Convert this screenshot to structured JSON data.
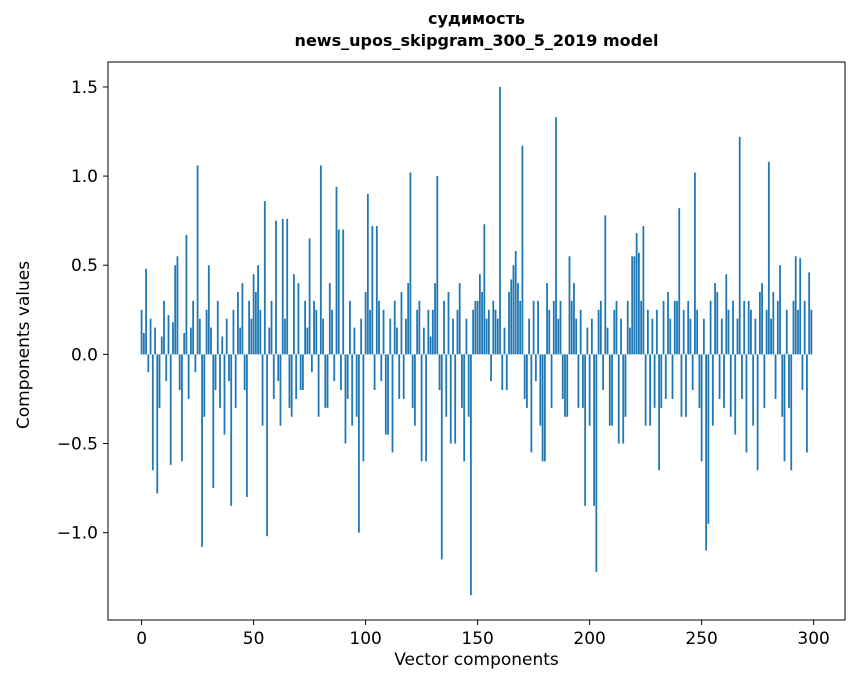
{
  "chart_data": {
    "type": "bar",
    "title": "судимость",
    "subtitle": "news_upos_skipgram_300_5_2019 model",
    "xlabel": "Vector components",
    "ylabel": "Components values",
    "xlim": [
      -15,
      314
    ],
    "ylim": [
      -1.49,
      1.64
    ],
    "x_ticks": [
      0,
      50,
      100,
      150,
      200,
      250,
      300
    ],
    "x_tick_labels": [
      "0",
      "50",
      "100",
      "150",
      "200",
      "250",
      "300"
    ],
    "y_ticks": [
      1.5,
      1.0,
      0.5,
      0.0,
      -0.5,
      -1.0
    ],
    "y_tick_labels": [
      "1.5",
      "1.0",
      "0.5",
      "0.0",
      "−0.5",
      "−1.0"
    ],
    "grid": false,
    "legend": null,
    "bar_color": "#1f77b4",
    "background": "#ffffff",
    "text_color": "#000000",
    "x_start": 0,
    "values": [
      0.25,
      0.12,
      0.48,
      -0.1,
      0.2,
      -0.65,
      0.15,
      -0.78,
      -0.3,
      0.1,
      0.3,
      -0.15,
      0.22,
      -0.62,
      0.18,
      0.5,
      0.55,
      -0.2,
      -0.6,
      0.12,
      0.67,
      -0.25,
      0.15,
      0.3,
      -0.1,
      1.06,
      0.2,
      -1.08,
      -0.35,
      0.25,
      0.5,
      0.15,
      -0.75,
      -0.2,
      0.3,
      -0.3,
      0.1,
      -0.45,
      0.2,
      -0.15,
      -0.85,
      0.25,
      -0.3,
      0.35,
      0.15,
      0.4,
      -0.2,
      -0.8,
      0.3,
      0.2,
      0.45,
      0.35,
      0.5,
      0.25,
      -0.4,
      0.86,
      -1.02,
      0.15,
      0.3,
      -0.25,
      0.75,
      -0.15,
      -0.4,
      0.76,
      0.2,
      0.76,
      -0.3,
      -0.35,
      0.45,
      -0.25,
      0.4,
      -0.2,
      -0.2,
      0.3,
      0.15,
      0.65,
      -0.1,
      0.3,
      0.25,
      -0.35,
      1.06,
      0.2,
      -0.3,
      -0.3,
      0.4,
      0.25,
      -0.15,
      0.94,
      0.7,
      -0.2,
      0.7,
      -0.5,
      -0.25,
      0.3,
      -0.4,
      0.15,
      -0.35,
      -1.0,
      0.2,
      -0.6,
      0.35,
      0.9,
      0.25,
      0.72,
      -0.2,
      0.72,
      0.3,
      -0.15,
      0.25,
      -0.45,
      -0.45,
      0.2,
      -0.55,
      0.3,
      0.15,
      -0.25,
      0.35,
      -0.25,
      0.2,
      0.4,
      1.02,
      -0.3,
      -0.4,
      0.25,
      0.3,
      -0.6,
      0.15,
      -0.6,
      0.25,
      0.1,
      0.25,
      0.4,
      1.0,
      -0.2,
      -1.15,
      0.3,
      -0.35,
      0.35,
      -0.5,
      0.2,
      -0.5,
      0.25,
      0.4,
      -0.3,
      -0.6,
      0.2,
      -0.35,
      -1.35,
      0.25,
      0.3,
      0.3,
      0.45,
      0.35,
      0.73,
      0.2,
      0.25,
      -0.15,
      0.3,
      0.25,
      0.2,
      1.5,
      -0.2,
      0.15,
      -0.2,
      0.35,
      0.42,
      0.5,
      0.58,
      0.4,
      0.3,
      1.17,
      -0.25,
      -0.3,
      0.2,
      -0.55,
      0.3,
      -0.15,
      0.3,
      -0.4,
      -0.6,
      -0.6,
      0.4,
      0.25,
      -0.3,
      0.3,
      1.33,
      0.2,
      0.3,
      -0.25,
      -0.35,
      -0.35,
      0.55,
      0.3,
      0.4,
      0.2,
      -0.3,
      0.25,
      -0.3,
      -0.85,
      0.15,
      -0.4,
      0.2,
      -0.85,
      -1.22,
      0.25,
      0.3,
      -0.2,
      0.78,
      0.15,
      -0.4,
      -0.4,
      0.25,
      0.3,
      -0.5,
      0.2,
      -0.5,
      -0.35,
      0.3,
      0.15,
      0.55,
      0.55,
      0.68,
      0.57,
      0.3,
      0.72,
      -0.4,
      0.25,
      -0.4,
      0.2,
      -0.3,
      0.25,
      -0.65,
      -0.3,
      0.3,
      -0.25,
      0.35,
      0.2,
      -0.25,
      0.3,
      0.3,
      0.82,
      -0.35,
      0.25,
      -0.35,
      0.3,
      0.2,
      -0.2,
      1.02,
      0.25,
      -0.3,
      -0.6,
      0.2,
      -1.1,
      -0.95,
      0.3,
      -0.4,
      0.4,
      0.35,
      -0.25,
      0.2,
      -0.3,
      0.45,
      0.25,
      -0.35,
      0.3,
      -0.45,
      0.2,
      1.22,
      -0.25,
      0.3,
      -0.55,
      0.3,
      0.25,
      -0.4,
      0.2,
      -0.65,
      0.35,
      0.4,
      -0.3,
      0.25,
      1.08,
      0.2,
      0.35,
      -0.25,
      0.3,
      0.5,
      -0.35,
      -0.6,
      0.25,
      -0.3,
      -0.65,
      0.3,
      0.55,
      0.25,
      0.54,
      -0.2,
      0.3,
      -0.55,
      0.46,
      0.25
    ]
  }
}
